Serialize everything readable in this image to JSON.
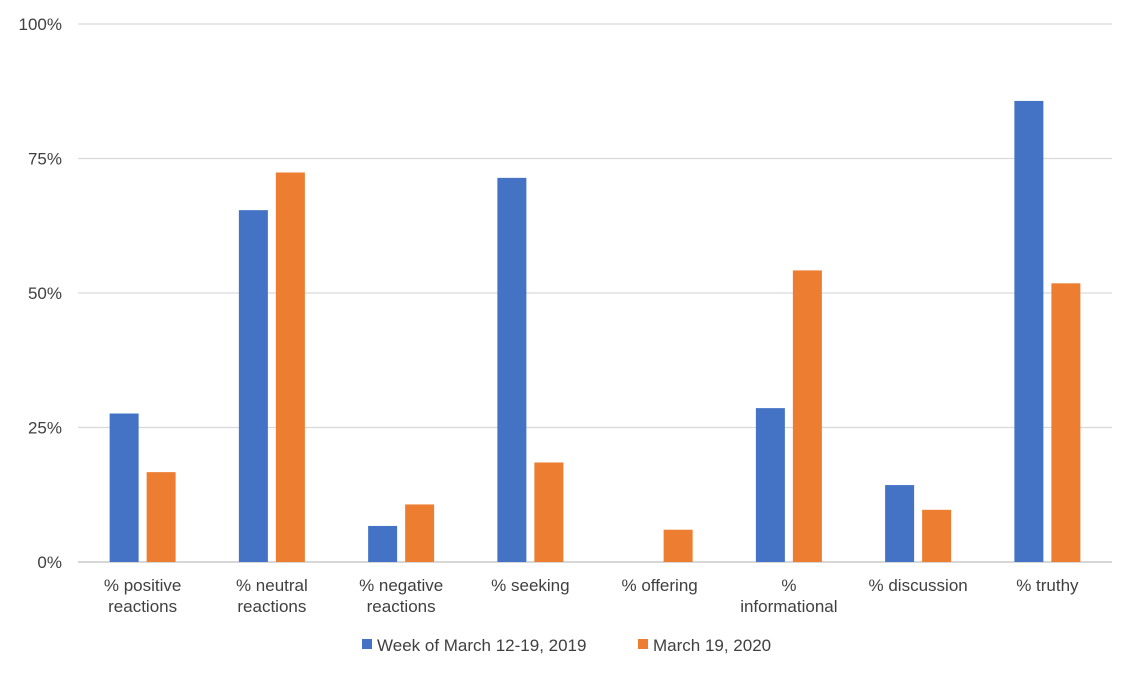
{
  "chart_data": {
    "type": "bar",
    "categories": [
      [
        "% positive",
        "reactions"
      ],
      [
        "% neutral",
        "reactions"
      ],
      [
        "% negative",
        "reactions"
      ],
      [
        "% seeking"
      ],
      [
        "% offering"
      ],
      [
        "%",
        "informational"
      ],
      [
        "% discussion"
      ],
      [
        "% truthy"
      ]
    ],
    "series": [
      {
        "name": "Week of March 12-19, 2019",
        "color": "#4472C4",
        "values": [
          27.6,
          65.4,
          6.7,
          71.4,
          0,
          28.6,
          14.3,
          85.7
        ]
      },
      {
        "name": "March 19, 2020",
        "color": "#ED7D31",
        "values": [
          16.7,
          72.4,
          10.7,
          18.5,
          6.0,
          54.2,
          9.7,
          51.8
        ]
      }
    ],
    "ylim": [
      0,
      100
    ],
    "yticks": [
      {
        "value": 0,
        "label": "0%"
      },
      {
        "value": 25,
        "label": "25%"
      },
      {
        "value": 50,
        "label": "50%"
      },
      {
        "value": 75,
        "label": "75%"
      },
      {
        "value": 100,
        "label": "100%"
      }
    ],
    "grid": true,
    "legend_position": "bottom",
    "title": "",
    "xlabel": "",
    "ylabel": ""
  }
}
